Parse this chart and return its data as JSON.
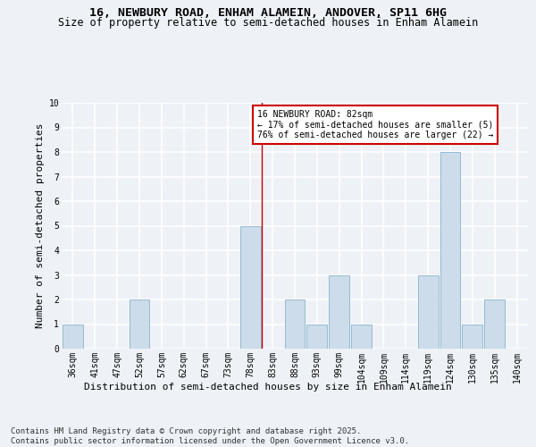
{
  "title1": "16, NEWBURY ROAD, ENHAM ALAMEIN, ANDOVER, SP11 6HG",
  "title2": "Size of property relative to semi-detached houses in Enham Alamein",
  "xlabel": "Distribution of semi-detached houses by size in Enham Alamein",
  "ylabel": "Number of semi-detached properties",
  "footer": "Contains HM Land Registry data © Crown copyright and database right 2025.\nContains public sector information licensed under the Open Government Licence v3.0.",
  "categories": [
    "36sqm",
    "41sqm",
    "47sqm",
    "52sqm",
    "57sqm",
    "62sqm",
    "67sqm",
    "73sqm",
    "78sqm",
    "83sqm",
    "88sqm",
    "93sqm",
    "99sqm",
    "104sqm",
    "109sqm",
    "114sqm",
    "119sqm",
    "124sqm",
    "130sqm",
    "135sqm",
    "140sqm"
  ],
  "values": [
    1,
    0,
    0,
    2,
    0,
    0,
    0,
    0,
    5,
    0,
    2,
    1,
    3,
    1,
    0,
    0,
    3,
    8,
    1,
    2,
    0
  ],
  "bar_color": "#ccdcea",
  "bar_edge_color": "#8ab4cc",
  "vline_x_index": 8.5,
  "annotation_text": "16 NEWBURY ROAD: 82sqm\n← 17% of semi-detached houses are smaller (5)\n76% of semi-detached houses are larger (22) →",
  "annotation_box_color": "#ffffff",
  "annotation_box_edge": "#cc0000",
  "vline_color": "#cc0000",
  "ylim": [
    0,
    10
  ],
  "background_color": "#eef2f7",
  "grid_color": "#ffffff",
  "title_fontsize": 9.5,
  "subtitle_fontsize": 8.5,
  "tick_fontsize": 7,
  "ylabel_fontsize": 8,
  "xlabel_fontsize": 8,
  "annotation_fontsize": 7,
  "footer_fontsize": 6.5
}
